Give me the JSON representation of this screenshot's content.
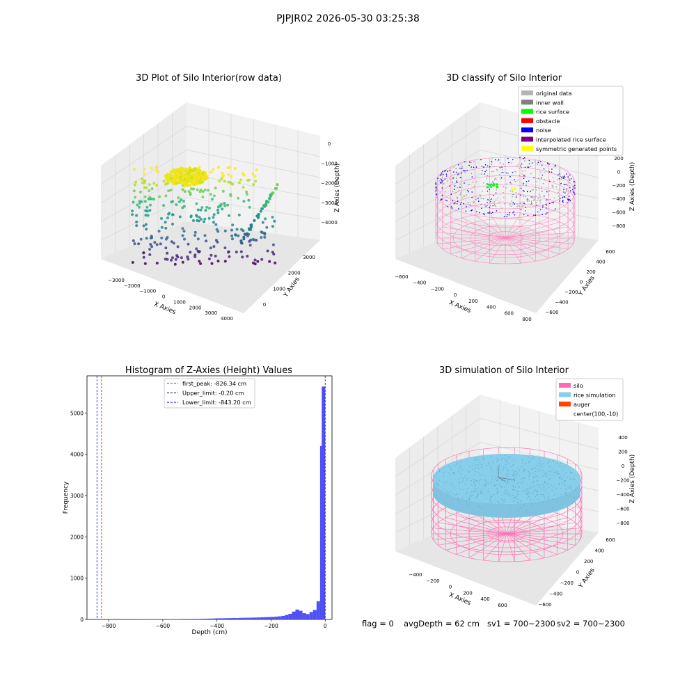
{
  "figure_title": "PJPJR02 2026-05-30 03:25:38",
  "colors": {
    "grid_pane": "#f2f2f2",
    "grid_line": "#d9d9d9",
    "hist_bar": "#5050f5",
    "silo_pink": "#ff69b4",
    "rice_blue": "#87ceeb",
    "noise_blue": "#0000ff",
    "rice_green": "#00ff00",
    "yellow": "#ffff00"
  },
  "chart_data": [
    {
      "type": "scatter",
      "title": "3D Plot of Silo Interior(row data)",
      "xlabel": "X Axies",
      "ylabel": "Y Axies",
      "zlabel": "Z Axies (Depth)",
      "xticks": [
        "−3000",
        "−2000",
        "−1000",
        "0",
        "1000",
        "2000",
        "3000",
        "4000"
      ],
      "yticks": [
        "0",
        "1000",
        "2000",
        "3000"
      ],
      "zticks": [
        "0",
        "−1000",
        "−2000",
        "−3000",
        "−4000"
      ],
      "colormap": "viridis"
    },
    {
      "type": "scatter",
      "title": "3D classify of Silo Interior",
      "xlabel": "X Axies",
      "ylabel": "Y Axies",
      "zlabel": "Z Axies (Depth)",
      "xticks": [
        "−600",
        "−400",
        "−200",
        "0",
        "200",
        "400",
        "600",
        "800"
      ],
      "yticks": [
        "−600",
        "−400",
        "−200",
        "0",
        "200",
        "400",
        "600"
      ],
      "zticks": [
        "200",
        "0",
        "−200",
        "−400",
        "−600",
        "−800"
      ],
      "ztick_partial": "00",
      "legend_position": "top-right",
      "legend": [
        {
          "label": "original data",
          "color": "#b4b4b4"
        },
        {
          "label": "inner wall",
          "color": "#808080"
        },
        {
          "label": "rice surface",
          "color": "#00ff00"
        },
        {
          "label": "obstacle",
          "color": "#ff0000"
        },
        {
          "label": "noise",
          "color": "#0000ff"
        },
        {
          "label": "interpolated rice surface",
          "color": "#800080"
        },
        {
          "label": "symmetric generated points",
          "color": "#ffff00"
        }
      ]
    },
    {
      "type": "bar",
      "title": "Histogram of Z-Axies (Height) Values",
      "xlabel": "Depth (cm)",
      "ylabel": "Frequency",
      "xlim": [
        -880,
        25
      ],
      "ylim": [
        0,
        5900
      ],
      "xticks": [
        -800,
        -600,
        -400,
        -200,
        0
      ],
      "xtick_labels": [
        "−800",
        "−600",
        "−400",
        "−200",
        "0"
      ],
      "yticks": [
        0,
        1000,
        2000,
        3000,
        4000,
        5000
      ],
      "bin_width": 13,
      "bins": [
        [
          -760,
          3
        ],
        [
          -747,
          3
        ],
        [
          -734,
          3
        ],
        [
          -721,
          3
        ],
        [
          -708,
          4
        ],
        [
          -695,
          4
        ],
        [
          -682,
          4
        ],
        [
          -669,
          5
        ],
        [
          -656,
          5
        ],
        [
          -643,
          6
        ],
        [
          -630,
          5
        ],
        [
          -617,
          6
        ],
        [
          -604,
          7
        ],
        [
          -591,
          7
        ],
        [
          -578,
          8
        ],
        [
          -565,
          8
        ],
        [
          -552,
          9
        ],
        [
          -539,
          10
        ],
        [
          -526,
          12
        ],
        [
          -513,
          11
        ],
        [
          -500,
          12
        ],
        [
          -487,
          14
        ],
        [
          -474,
          13
        ],
        [
          -461,
          15
        ],
        [
          -448,
          18
        ],
        [
          -435,
          20
        ],
        [
          -422,
          22
        ],
        [
          -409,
          25
        ],
        [
          -396,
          27
        ],
        [
          -383,
          28
        ],
        [
          -370,
          30
        ],
        [
          -357,
          32
        ],
        [
          -344,
          35
        ],
        [
          -331,
          33
        ],
        [
          -318,
          38
        ],
        [
          -305,
          40
        ],
        [
          -292,
          42
        ],
        [
          -279,
          44
        ],
        [
          -266,
          45
        ],
        [
          -253,
          48
        ],
        [
          -240,
          52
        ],
        [
          -227,
          55
        ],
        [
          -214,
          58
        ],
        [
          -201,
          62
        ],
        [
          -188,
          68
        ],
        [
          -175,
          75
        ],
        [
          -162,
          85
        ],
        [
          -149,
          110
        ],
        [
          -136,
          135
        ],
        [
          -123,
          190
        ],
        [
          -110,
          240
        ],
        [
          -97,
          210
        ],
        [
          -84,
          150
        ],
        [
          -71,
          130
        ],
        [
          -58,
          180
        ],
        [
          -45,
          230
        ],
        [
          -32,
          440
        ],
        [
          -19,
          4200
        ],
        [
          -13,
          5640
        ]
      ],
      "legend_position": "top-center",
      "vlines": [
        {
          "x": -826.34,
          "label": "first_peak: -826.34 cm",
          "color": "#ff0000"
        },
        {
          "x": -0.2,
          "label": "Upper_limit: -0.20 cm",
          "color": "#00008b"
        },
        {
          "x": -843.2,
          "label": "Lower_limit: -843.20 cm",
          "color": "#0000ff"
        }
      ]
    },
    {
      "type": "scatter",
      "title": "3D simulation of Silo Interior",
      "xlabel": "X Axies",
      "ylabel": "Y Axies",
      "zlabel": "Z Axies (Depth)",
      "xticks": [
        "−400",
        "−200",
        "0",
        "200",
        "400",
        "600"
      ],
      "yticks": [
        "−600",
        "−400",
        "−200",
        "0",
        "200",
        "400",
        "600"
      ],
      "zticks": [
        "400",
        "200",
        "0",
        "−200",
        "−400",
        "−600",
        "−800"
      ],
      "legend_position": "top-right",
      "legend": [
        {
          "label": "silo",
          "color": "#ff69b4"
        },
        {
          "label": "rice simulation",
          "color": "#87ceeb"
        },
        {
          "label": "auger",
          "color": "#ff4500"
        },
        {
          "label": "center(100,-10)",
          "color": ""
        }
      ]
    }
  ],
  "status": {
    "flag": "flag = 0",
    "avg_depth": "avgDepth = 62 cm",
    "sv1": "sv1 = 700~2300",
    "sv2": "sv2 = 700~2300"
  }
}
